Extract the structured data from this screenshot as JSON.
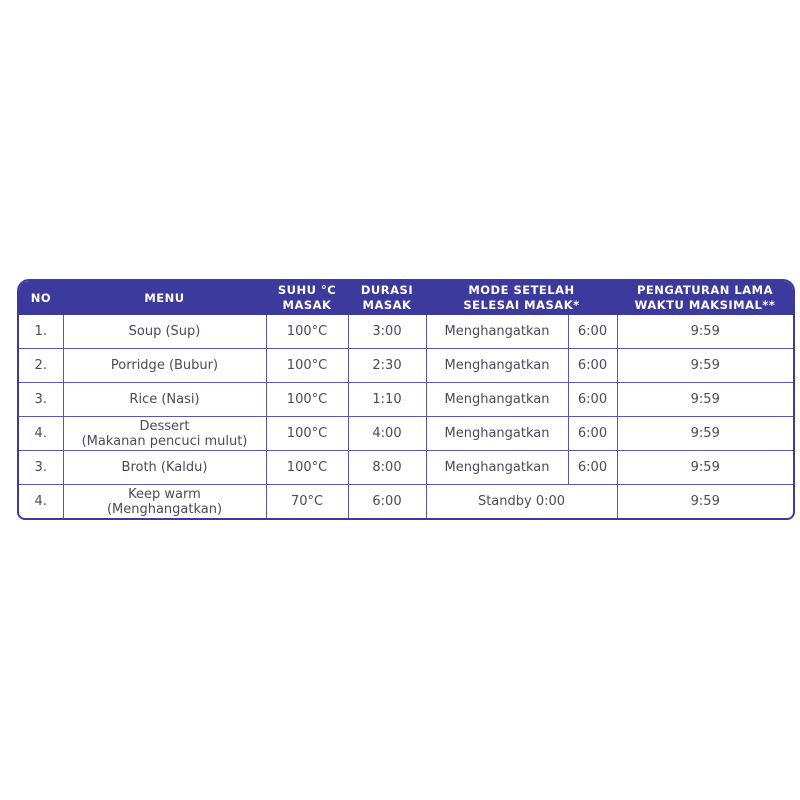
{
  "headers": {
    "no": "NO",
    "menu": "MENU",
    "suhu": [
      "SUHU °C",
      "MASAK"
    ],
    "durasi": [
      "DURASI",
      "MASAK"
    ],
    "mode": [
      "MODE SETELAH",
      "SELESAI MASAK*"
    ],
    "max": [
      "PENGATURAN LAMA",
      "WAKTU MAKSIMAL**"
    ]
  },
  "rows": [
    {
      "no": "1.",
      "menu": [
        "Soup (Sup)"
      ],
      "suhu": "100°C",
      "durasi": "3:00",
      "mode": "Menghangatkan",
      "mode_time": "6:00",
      "max": "9:59"
    },
    {
      "no": "2.",
      "menu": [
        "Porridge (Bubur)"
      ],
      "suhu": "100°C",
      "durasi": "2:30",
      "mode": "Menghangatkan",
      "mode_time": "6:00",
      "max": "9:59"
    },
    {
      "no": "3.",
      "menu": [
        "Rice (Nasi)"
      ],
      "suhu": "100°C",
      "durasi": "1:10",
      "mode": "Menghangatkan",
      "mode_time": "6:00",
      "max": "9:59"
    },
    {
      "no": "4.",
      "menu": [
        "Dessert",
        "(Makanan pencuci mulut)"
      ],
      "suhu": "100°C",
      "durasi": "4:00",
      "mode": "Menghangatkan",
      "mode_time": "6:00",
      "max": "9:59"
    },
    {
      "no": "3.",
      "menu": [
        "Broth (Kaldu)"
      ],
      "suhu": "100°C",
      "durasi": "8:00",
      "mode": "Menghangatkan",
      "mode_time": "6:00",
      "max": "9:59"
    },
    {
      "no": "4.",
      "menu": [
        "Keep warm",
        "(Menghangatkan)"
      ],
      "suhu": "70°C",
      "durasi": "6:00",
      "mode": "Standby 0:00",
      "max": "9:59"
    }
  ],
  "colors": {
    "header_bg": "#3d3a9e",
    "border": "#5a57b0"
  }
}
